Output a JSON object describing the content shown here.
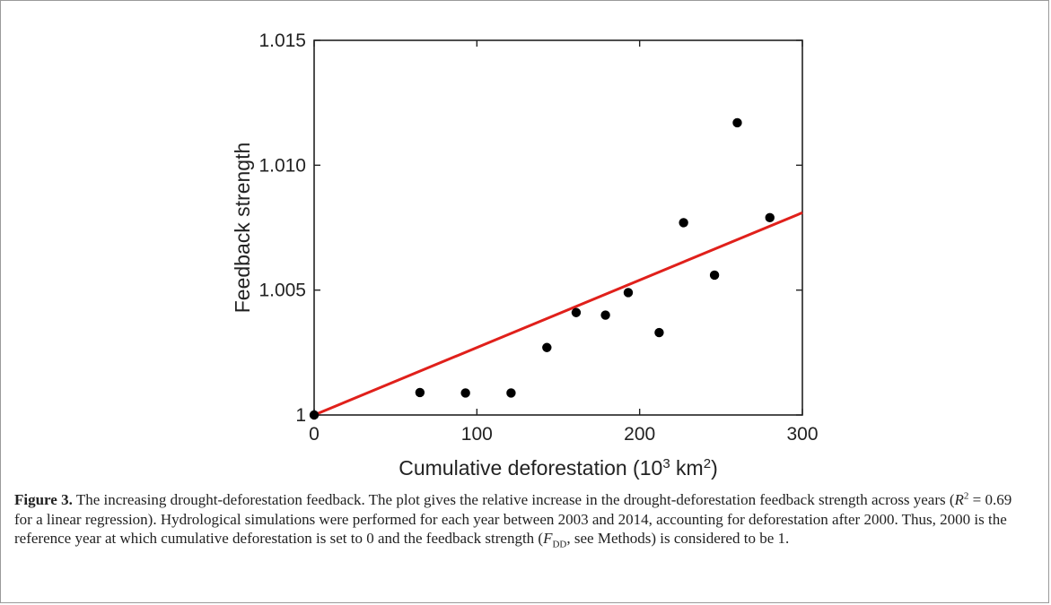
{
  "figure": {
    "caption_label": "Figure 3.",
    "caption_lead": "The increasing drought-deforestation feedback. The plot gives the relative increase in the drought-deforestation feedback strength across years (",
    "caption_r": "R",
    "caption_r_sup": "2",
    "caption_r2_value": " = 0.69 for a linear regression). Hydrological simulations were performed for each year between 2003 and 2014, accounting for deforestation after 2000. Thus, 2000 is the reference year at which cumulative deforestation is set to 0 and the feedback strength (",
    "caption_f": "F",
    "caption_f_sub": "DD",
    "caption_tail": ", see Methods) is considered to be 1."
  },
  "chart_data": {
    "type": "scatter",
    "xlabel": "Cumulative deforestation (10",
    "xlabel_sup": "3",
    "xlabel_unit": " km",
    "xlabel_sup2": "2",
    "xlabel_close": ")",
    "ylabel": "Feedback strength",
    "xlim": [
      0,
      300
    ],
    "ylim": [
      1.0,
      1.015
    ],
    "xticks": [
      0,
      100,
      200,
      300
    ],
    "yticks": [
      1.0,
      1.005,
      1.01,
      1.015
    ],
    "ytick_labels": [
      "1",
      "1.005",
      "1.010",
      "1.015"
    ],
    "points": [
      {
        "x": 0,
        "y": 1.0
      },
      {
        "x": 65,
        "y": 1.0009
      },
      {
        "x": 93,
        "y": 1.00088
      },
      {
        "x": 121,
        "y": 1.00088
      },
      {
        "x": 143,
        "y": 1.0027
      },
      {
        "x": 161,
        "y": 1.0041
      },
      {
        "x": 179,
        "y": 1.004
      },
      {
        "x": 193,
        "y": 1.0049
      },
      {
        "x": 212,
        "y": 1.0033
      },
      {
        "x": 227,
        "y": 1.0077
      },
      {
        "x": 246,
        "y": 1.0056
      },
      {
        "x": 260,
        "y": 1.0117
      },
      {
        "x": 280,
        "y": 1.0079
      }
    ],
    "fit_line": {
      "x": [
        0,
        300
      ],
      "y": [
        1.0,
        1.0081
      ]
    },
    "colors": {
      "points": "#000000",
      "fit_line": "#e0201b",
      "axes": "#222222"
    }
  }
}
